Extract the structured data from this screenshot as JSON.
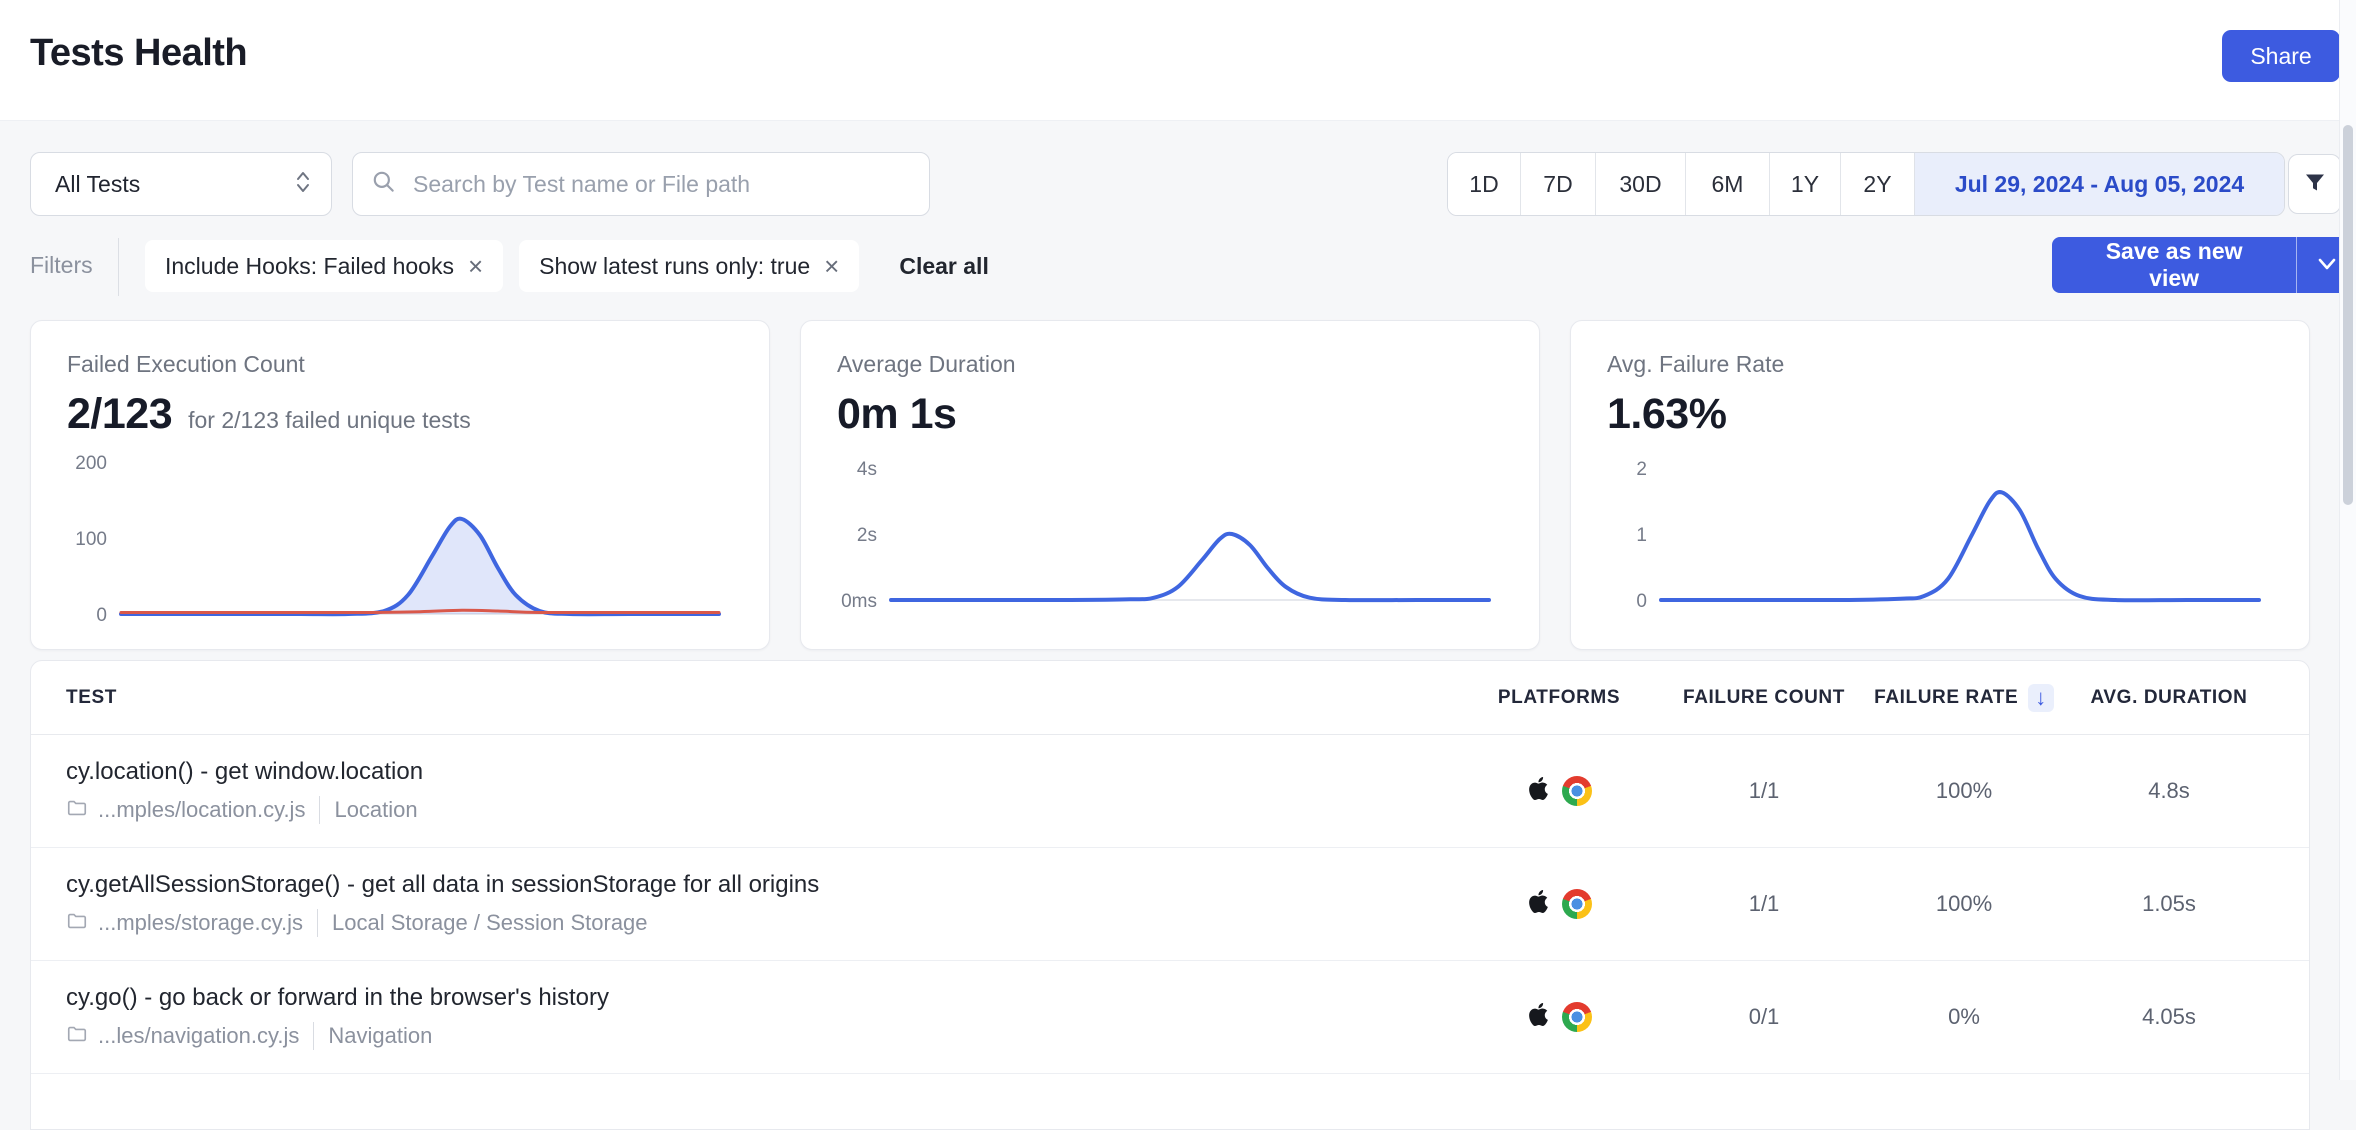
{
  "header": {
    "title": "Tests Health",
    "share_label": "Share"
  },
  "toolbar": {
    "project_select": {
      "value": "All Tests"
    },
    "search": {
      "placeholder": "Search by Test name or File path"
    },
    "range_buttons": [
      "1D",
      "7D",
      "30D",
      "6M",
      "1Y",
      "2Y"
    ],
    "date_range": "Jul 29, 2024 - Aug 05, 2024"
  },
  "filters": {
    "label": "Filters",
    "chips": [
      {
        "label": "Include Hooks: Failed hooks",
        "remove": "×"
      },
      {
        "label": "Show latest runs only: true",
        "remove": "×"
      }
    ],
    "clear_all": "Clear all",
    "save_view": "Save as new view"
  },
  "metric_cards": [
    {
      "title": "Failed Execution Count",
      "value": "2/123",
      "subtitle": "for 2/123 failed unique tests"
    },
    {
      "title": "Average Duration",
      "value": "0m 1s",
      "subtitle": ""
    },
    {
      "title": "Avg. Failure Rate",
      "value": "1.63%",
      "subtitle": ""
    }
  ],
  "chart_data": [
    {
      "type": "line",
      "title": "Failed Execution Count",
      "ylabels": [
        {
          "value": 200,
          "label": "200"
        },
        {
          "value": 100,
          "label": "100"
        },
        {
          "value": 0,
          "label": "0"
        }
      ],
      "layout": {
        "top_value": 200,
        "top_y": 19,
        "base_y": 171,
        "grid": false,
        "legend": false
      },
      "series": [
        {
          "name": "failed-executions",
          "color": "#3f66e0",
          "width": 4,
          "fill": "rgba(63,102,224,0.16)",
          "points": [
            [
              0,
              0
            ],
            [
              0.1,
              0
            ],
            [
              0.2,
              0
            ],
            [
              0.3,
              0
            ],
            [
              0.38,
              0
            ],
            [
              0.44,
              4
            ],
            [
              0.48,
              25
            ],
            [
              0.52,
              76
            ],
            [
              0.55,
              115
            ],
            [
              0.57,
              125
            ],
            [
              0.6,
              104
            ],
            [
              0.63,
              61
            ],
            [
              0.66,
              25
            ],
            [
              0.7,
              4
            ],
            [
              0.75,
              0
            ],
            [
              0.85,
              0
            ],
            [
              1,
              0
            ]
          ]
        },
        {
          "name": "failed-unique-tests",
          "color": "#d9584a",
          "width": 3,
          "fill": null,
          "points": [
            [
              0,
              2
            ],
            [
              0.2,
              2
            ],
            [
              0.4,
              2
            ],
            [
              0.5,
              3
            ],
            [
              0.57,
              5
            ],
            [
              0.63,
              4
            ],
            [
              0.7,
              2
            ],
            [
              0.85,
              2
            ],
            [
              1,
              2
            ]
          ]
        }
      ]
    },
    {
      "type": "line",
      "title": "Average Duration",
      "ylabels": [
        {
          "value": 4,
          "label": "4s"
        },
        {
          "value": 2,
          "label": "2s"
        },
        {
          "value": 0,
          "label": "0ms"
        }
      ],
      "layout": {
        "top_value": 4,
        "top_y": 25,
        "base_y": 157,
        "grid": false,
        "legend": false
      },
      "series": [
        {
          "name": "avg-duration-seconds",
          "color": "#3f66e0",
          "width": 4,
          "fill": null,
          "points": [
            [
              0,
              0
            ],
            [
              0.15,
              0
            ],
            [
              0.3,
              0
            ],
            [
              0.4,
              0.02
            ],
            [
              0.44,
              0.07
            ],
            [
              0.48,
              0.4
            ],
            [
              0.52,
              1.21
            ],
            [
              0.55,
              1.85
            ],
            [
              0.57,
              2.0
            ],
            [
              0.6,
              1.67
            ],
            [
              0.63,
              0.97
            ],
            [
              0.66,
              0.4
            ],
            [
              0.7,
              0.07
            ],
            [
              0.76,
              0
            ],
            [
              0.88,
              0
            ],
            [
              1,
              0
            ]
          ]
        }
      ]
    },
    {
      "type": "line",
      "title": "Avg. Failure Rate",
      "ylabels": [
        {
          "value": 2,
          "label": "2"
        },
        {
          "value": 1,
          "label": "1"
        },
        {
          "value": 0,
          "label": "0"
        }
      ],
      "layout": {
        "top_value": 2,
        "top_y": 25,
        "base_y": 157,
        "grid": false,
        "legend": false
      },
      "series": [
        {
          "name": "avg-failure-rate-pct",
          "color": "#3f66e0",
          "width": 4,
          "fill": null,
          "points": [
            [
              0,
              0
            ],
            [
              0.15,
              0
            ],
            [
              0.3,
              0
            ],
            [
              0.4,
              0.02
            ],
            [
              0.44,
              0.06
            ],
            [
              0.48,
              0.32
            ],
            [
              0.52,
              0.99
            ],
            [
              0.55,
              1.5
            ],
            [
              0.57,
              1.63
            ],
            [
              0.6,
              1.36
            ],
            [
              0.63,
              0.79
            ],
            [
              0.66,
              0.32
            ],
            [
              0.7,
              0.06
            ],
            [
              0.76,
              0
            ],
            [
              0.88,
              0
            ],
            [
              1,
              0
            ]
          ]
        }
      ]
    }
  ],
  "table": {
    "columns": [
      "TEST",
      "PLATFORMS",
      "FAILURE COUNT",
      "FAILURE RATE",
      "AVG. DURATION"
    ],
    "sorted_column": "FAILURE RATE",
    "sort_icon": "↓",
    "rows": [
      {
        "name": "cy.location() - get window.location",
        "file": "...mples/location.cy.js",
        "group": "Location",
        "platforms": [
          "apple",
          "chrome"
        ],
        "failure_count": "1/1",
        "failure_rate": "100%",
        "avg_duration": "4.8s"
      },
      {
        "name": "cy.getAllSessionStorage() - get all data in sessionStorage for all origins",
        "file": "...mples/storage.cy.js",
        "group": "Local Storage / Session Storage",
        "platforms": [
          "apple",
          "chrome"
        ],
        "failure_count": "1/1",
        "failure_rate": "100%",
        "avg_duration": "1.05s"
      },
      {
        "name": "cy.go() - go back or forward in the browser's history",
        "file": "...les/navigation.cy.js",
        "group": "Navigation",
        "platforms": [
          "apple",
          "chrome"
        ],
        "failure_count": "0/1",
        "failure_rate": "0%",
        "avg_duration": "4.05s"
      }
    ]
  },
  "colors": {
    "accent_blue": "#3d5be0",
    "chart_blue": "#3f66e0",
    "chart_red": "#d9584a",
    "date_chip_bg": "#e9eefb",
    "date_chip_text": "#2b4bc8",
    "page_bg": "#f6f7f9"
  }
}
